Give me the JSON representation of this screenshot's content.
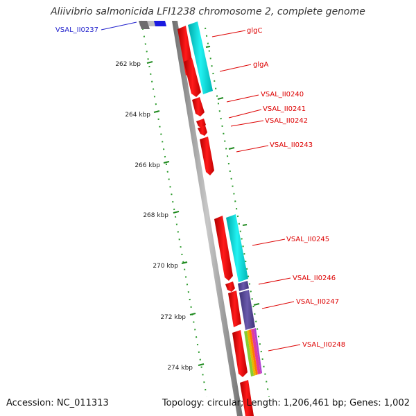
{
  "title": "Aliivibrio salmonicida LFI1238 chromosome 2, complete genome",
  "accession": "Accession: NC_011313",
  "summary": "Topology: circular; Length: 1,206,461 bp; Genes: 1,002",
  "ticks": [
    {
      "label": "262 kbp"
    },
    {
      "label": "264 kbp"
    },
    {
      "label": "266 kbp"
    },
    {
      "label": "268 kbp"
    },
    {
      "label": "270 kbp"
    },
    {
      "label": "272 kbp"
    },
    {
      "label": "274 kbp"
    }
  ],
  "labels": [
    {
      "text": "VSAL_II0237",
      "color": "#1f1fcc"
    },
    {
      "text": "glgC",
      "color": "#dd0000"
    },
    {
      "text": "glgA",
      "color": "#dd0000"
    },
    {
      "text": "VSAL_II0240",
      "color": "#dd0000"
    },
    {
      "text": "VSAL_II0241",
      "color": "#dd0000"
    },
    {
      "text": "VSAL_II0242",
      "color": "#dd0000"
    },
    {
      "text": "VSAL_II0243",
      "color": "#dd0000"
    },
    {
      "text": "VSAL_II0245",
      "color": "#dd0000"
    },
    {
      "text": "VSAL_II0246",
      "color": "#dd0000"
    },
    {
      "text": "VSAL_II0247",
      "color": "#dd0000"
    },
    {
      "text": "VSAL_II0248",
      "color": "#dd0000"
    }
  ],
  "colors": {
    "cds": "#ff0000",
    "cog_cyan": "#00dede",
    "cog_indigo": "#5a4a9a",
    "backbone": "#8a8a8a",
    "tick": "#1f8a1f"
  }
}
